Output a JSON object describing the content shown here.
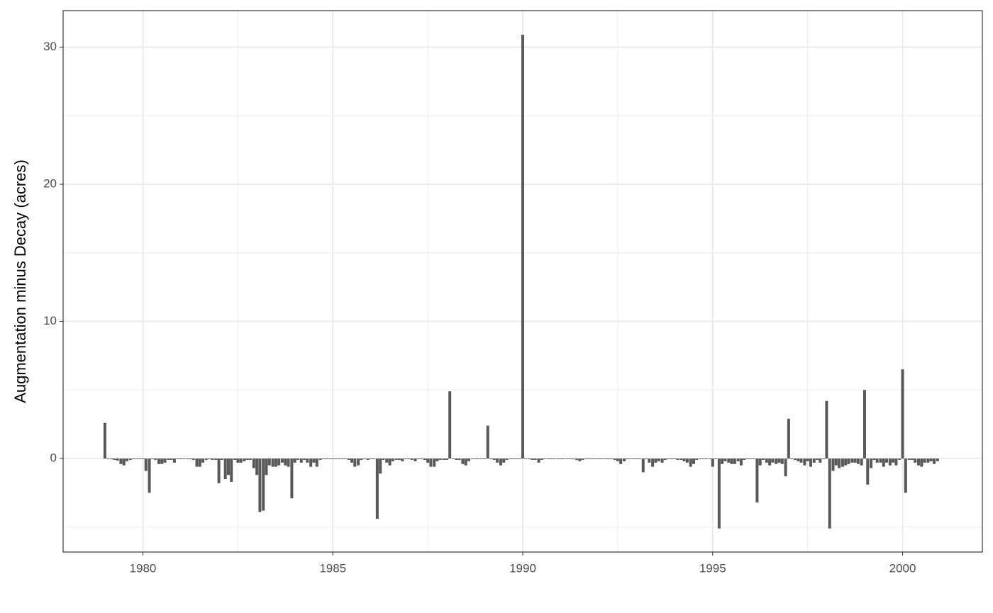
{
  "chart_data": {
    "type": "bar",
    "ylabel": "Augmentation minus Decay (acres)",
    "color": "#595959",
    "grid": true,
    "xlim": [
      1977.9,
      2002.1
    ],
    "xticks": [
      1980,
      1985,
      1990,
      1995,
      2000
    ],
    "xminor": [
      1982.5,
      1987.5,
      1992.5,
      1997.5
    ],
    "ylim": [
      -6.82,
      32.66
    ],
    "yticks": [
      0,
      10,
      20,
      30
    ],
    "yminor": [
      -5,
      5,
      15,
      25
    ],
    "x": [
      1979,
      1979.08,
      1979.17,
      1979.25,
      1979.33,
      1979.42,
      1979.5,
      1979.58,
      1979.67,
      1979.75,
      1979.83,
      1979.92,
      1980,
      1980.08,
      1980.17,
      1980.25,
      1980.33,
      1980.42,
      1980.5,
      1980.58,
      1980.67,
      1980.75,
      1980.83,
      1980.92,
      1981,
      1981.08,
      1981.17,
      1981.25,
      1981.33,
      1981.42,
      1981.5,
      1981.58,
      1981.67,
      1981.75,
      1981.83,
      1981.92,
      1982,
      1982.08,
      1982.17,
      1982.25,
      1982.33,
      1982.42,
      1982.5,
      1982.58,
      1982.67,
      1982.75,
      1982.83,
      1982.92,
      1983,
      1983.08,
      1983.17,
      1983.25,
      1983.33,
      1983.42,
      1983.5,
      1983.58,
      1983.67,
      1983.75,
      1983.83,
      1983.92,
      1984,
      1984.08,
      1984.17,
      1984.25,
      1984.33,
      1984.42,
      1984.5,
      1984.58,
      1984.67,
      1984.75,
      1984.83,
      1984.92,
      1985,
      1985.08,
      1985.17,
      1985.25,
      1985.33,
      1985.42,
      1985.5,
      1985.58,
      1985.67,
      1985.75,
      1985.83,
      1985.92,
      1986,
      1986.08,
      1986.17,
      1986.25,
      1986.33,
      1986.42,
      1986.5,
      1986.58,
      1986.67,
      1986.75,
      1986.83,
      1986.92,
      1987,
      1987.08,
      1987.17,
      1987.25,
      1987.33,
      1987.42,
      1987.5,
      1987.58,
      1987.67,
      1987.75,
      1987.83,
      1987.92,
      1988,
      1988.08,
      1988.17,
      1988.25,
      1988.33,
      1988.42,
      1988.5,
      1988.58,
      1988.67,
      1988.75,
      1988.83,
      1988.92,
      1989,
      1989.08,
      1989.17,
      1989.25,
      1989.33,
      1989.42,
      1989.5,
      1989.58,
      1989.67,
      1989.75,
      1989.83,
      1989.92,
      1990,
      1990.08,
      1990.17,
      1990.25,
      1990.33,
      1990.42,
      1990.5,
      1990.58,
      1990.67,
      1990.75,
      1990.83,
      1990.92,
      1991,
      1991.08,
      1991.17,
      1991.25,
      1991.33,
      1991.42,
      1991.5,
      1991.58,
      1991.67,
      1991.75,
      1991.83,
      1991.92,
      1992,
      1992.08,
      1992.17,
      1992.25,
      1992.33,
      1992.42,
      1992.5,
      1992.58,
      1992.67,
      1992.75,
      1992.83,
      1992.92,
      1993,
      1993.08,
      1993.17,
      1993.25,
      1993.33,
      1993.42,
      1993.5,
      1993.58,
      1993.67,
      1993.75,
      1993.83,
      1993.92,
      1994,
      1994.08,
      1994.17,
      1994.25,
      1994.33,
      1994.42,
      1994.5,
      1994.58,
      1994.67,
      1994.75,
      1994.83,
      1994.92,
      1995,
      1995.08,
      1995.17,
      1995.25,
      1995.33,
      1995.42,
      1995.5,
      1995.58,
      1995.67,
      1995.75,
      1995.83,
      1995.92,
      1996,
      1996.08,
      1996.17,
      1996.25,
      1996.33,
      1996.42,
      1996.5,
      1996.58,
      1996.67,
      1996.75,
      1996.83,
      1996.92,
      1997,
      1997.08,
      1997.17,
      1997.25,
      1997.33,
      1997.42,
      1997.5,
      1997.58,
      1997.67,
      1997.75,
      1997.83,
      1997.92,
      1998,
      1998.08,
      1998.17,
      1998.25,
      1998.33,
      1998.42,
      1998.5,
      1998.58,
      1998.67,
      1998.75,
      1998.83,
      1998.92,
      1999,
      1999.08,
      1999.17,
      1999.25,
      1999.33,
      1999.42,
      1999.5,
      1999.58,
      1999.67,
      1999.75,
      1999.83,
      1999.92,
      2000,
      2000.08,
      2000.17,
      2000.25,
      2000.33,
      2000.42,
      2000.5,
      2000.58,
      2000.67,
      2000.75,
      2000.83,
      2000.92
    ],
    "values": [
      2.6,
      -0.05,
      -0.05,
      -0.1,
      -0.15,
      -0.4,
      -0.5,
      -0.2,
      -0.1,
      -0.05,
      -0.05,
      -0.05,
      -0.05,
      -0.9,
      -2.5,
      -0.05,
      -0.1,
      -0.4,
      -0.4,
      -0.3,
      -0.1,
      -0.1,
      -0.3,
      -0.05,
      -0.05,
      -0.05,
      -0.05,
      -0.05,
      -0.1,
      -0.6,
      -0.6,
      -0.3,
      -0.1,
      -0.05,
      -0.1,
      -0.1,
      -1.8,
      -0.1,
      -1.5,
      -1.2,
      -1.7,
      -0.1,
      -0.3,
      -0.3,
      -0.2,
      -0.1,
      -0.1,
      -0.7,
      -1.2,
      -3.9,
      -3.8,
      -1.2,
      -0.5,
      -0.6,
      -0.6,
      -0.5,
      -0.3,
      -0.5,
      -0.6,
      -2.9,
      -0.3,
      -0.1,
      -0.3,
      -0.1,
      -0.3,
      -0.6,
      -0.3,
      -0.6,
      -0.1,
      -0.05,
      -0.05,
      -0.05,
      -0.05,
      -0.05,
      -0.05,
      -0.05,
      -0.05,
      -0.1,
      -0.3,
      -0.6,
      -0.5,
      -0.1,
      -0.05,
      -0.1,
      -0.05,
      -0.05,
      -4.4,
      -1.1,
      -0.1,
      -0.3,
      -0.5,
      -0.2,
      -0.1,
      -0.1,
      -0.2,
      -0.05,
      -0.05,
      -0.1,
      -0.2,
      -0.05,
      -0.05,
      -0.1,
      -0.3,
      -0.6,
      -0.6,
      -0.2,
      -0.1,
      -0.1,
      -0.1,
      4.9,
      -0.05,
      -0.1,
      -0.1,
      -0.4,
      -0.5,
      -0.2,
      -0.05,
      -0.05,
      -0.05,
      -0.05,
      -0.05,
      2.4,
      -0.05,
      -0.1,
      -0.3,
      -0.5,
      -0.3,
      -0.1,
      -0.05,
      -0.05,
      -0.05,
      -0.05,
      30.9,
      -0.05,
      -0.05,
      -0.1,
      -0.1,
      -0.3,
      -0.1,
      -0.05,
      -0.05,
      -0.05,
      -0.05,
      -0.05,
      -0.05,
      -0.05,
      -0.05,
      -0.05,
      -0.05,
      -0.1,
      -0.2,
      -0.1,
      -0.05,
      -0.05,
      -0.05,
      -0.05,
      -0.05,
      -0.05,
      -0.05,
      -0.05,
      -0.05,
      -0.1,
      -0.2,
      -0.4,
      -0.2,
      -0.05,
      -0.05,
      -0.05,
      -0.05,
      -0.05,
      -1.0,
      -0.05,
      -0.3,
      -0.6,
      -0.3,
      -0.2,
      -0.3,
      -0.1,
      -0.05,
      -0.05,
      -0.05,
      -0.1,
      -0.1,
      -0.2,
      -0.3,
      -0.6,
      -0.4,
      -0.1,
      -0.05,
      -0.05,
      -0.05,
      -0.05,
      -0.6,
      -0.05,
      -5.1,
      -0.4,
      -0.2,
      -0.3,
      -0.4,
      -0.4,
      -0.2,
      -0.5,
      -0.1,
      -0.05,
      -0.05,
      -0.05,
      -3.2,
      -0.5,
      -0.1,
      -0.3,
      -0.5,
      -0.3,
      -0.4,
      -0.3,
      -0.4,
      -1.3,
      2.9,
      -0.05,
      -0.1,
      -0.2,
      -0.3,
      -0.5,
      -0.2,
      -0.6,
      -0.3,
      -0.1,
      -0.3,
      -0.05,
      4.2,
      -5.1,
      -0.9,
      -0.5,
      -0.7,
      -0.6,
      -0.5,
      -0.4,
      -0.3,
      -0.3,
      -0.4,
      -0.5,
      5.0,
      -1.9,
      -0.7,
      -0.1,
      -0.3,
      -0.3,
      -0.6,
      -0.3,
      -0.5,
      -0.3,
      -0.5,
      -0.1,
      6.5,
      -2.5,
      -0.1,
      -0.1,
      -0.3,
      -0.5,
      -0.6,
      -0.3,
      -0.3,
      -0.2,
      -0.4,
      -0.2
    ]
  }
}
